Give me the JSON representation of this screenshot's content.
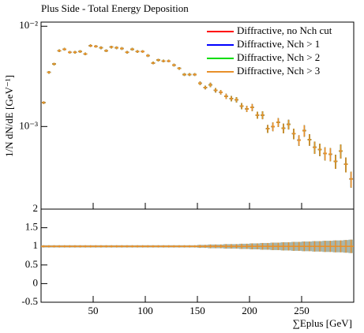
{
  "chart_data": [
    {
      "type": "errorbar",
      "title": "Plus Side - Total Energy Deposition",
      "y_label": "1/N dN/dE [GeV⁻¹]",
      "log_y": true,
      "legend": "upper right",
      "xlim": [
        0,
        300
      ],
      "xticks": [
        50,
        100,
        150,
        200,
        250
      ],
      "ylim": [
        0.00015,
        0.011
      ],
      "yticks": [
        {
          "value": 0.01,
          "label": "10⁻²"
        },
        {
          "value": 0.001,
          "label": "10⁻³"
        }
      ],
      "x": [
        2.5,
        7.5,
        12.5,
        17.5,
        22.5,
        27.5,
        32.5,
        37.5,
        42.5,
        47.5,
        52.5,
        57.5,
        62.5,
        67.5,
        72.5,
        77.5,
        82.5,
        87.5,
        92.5,
        97.5,
        102.5,
        107.5,
        112.5,
        117.5,
        122.5,
        127.5,
        132.5,
        137.5,
        142.5,
        147.5,
        152.5,
        157.5,
        162.5,
        167.5,
        172.5,
        177.5,
        182.5,
        187.5,
        192.5,
        197.5,
        202.5,
        207.5,
        212.5,
        217.5,
        222.5,
        227.5,
        232.5,
        237.5,
        242.5,
        247.5,
        252.5,
        257.5,
        262.5,
        267.5,
        272.5,
        277.5,
        282.5,
        287.5,
        292.5,
        297.5
      ],
      "series": [
        {
          "name": "Diffractive, no Nch cut",
          "color": "#ff0000",
          "values": [
            0.00173,
            0.00347,
            0.0042,
            0.0057,
            0.0059,
            0.0055,
            0.0055,
            0.0056,
            0.0053,
            0.0064,
            0.0063,
            0.0061,
            0.0057,
            0.0062,
            0.0061,
            0.006,
            0.0055,
            0.0059,
            0.0056,
            0.0056,
            0.0051,
            0.0043,
            0.0046,
            0.0045,
            0.0045,
            0.0041,
            0.0038,
            0.0033,
            0.0033,
            0.0033,
            0.0027,
            0.00245,
            0.0026,
            0.0023,
            0.0022,
            0.002,
            0.0019,
            0.00185,
            0.0016,
            0.0015,
            0.00155,
            0.0013,
            0.0013,
            0.00095,
            0.001,
            0.0011,
            0.00096,
            0.00105,
            0.00085,
            0.00073,
            0.00091,
            0.00074,
            0.00062,
            0.00059,
            0.00054,
            0.00053,
            0.00045,
            0.00057,
            0.00042,
            0.0003
          ]
        },
        {
          "name": "Diffractive, Nch > 1",
          "color": "#0000ff",
          "values": [
            0.00173,
            0.00347,
            0.0042,
            0.0057,
            0.0059,
            0.0055,
            0.0055,
            0.0056,
            0.0053,
            0.0064,
            0.0063,
            0.0061,
            0.0057,
            0.0062,
            0.0061,
            0.006,
            0.0055,
            0.0059,
            0.0056,
            0.0056,
            0.0051,
            0.0043,
            0.0046,
            0.0045,
            0.0045,
            0.0041,
            0.0038,
            0.0033,
            0.0033,
            0.0033,
            0.0027,
            0.00245,
            0.0026,
            0.0023,
            0.0022,
            0.002,
            0.0019,
            0.00185,
            0.0016,
            0.0015,
            0.00155,
            0.0013,
            0.0013,
            0.00095,
            0.001,
            0.0011,
            0.00096,
            0.00105,
            0.00085,
            0.00073,
            0.00091,
            0.00074,
            0.00062,
            0.00059,
            0.00054,
            0.00053,
            0.00045,
            0.00057,
            0.00042,
            0.0003
          ]
        },
        {
          "name": "Diffractive, Nch > 2",
          "color": "#00dd00",
          "values": [
            0.00173,
            0.00347,
            0.0042,
            0.0057,
            0.0059,
            0.0055,
            0.0055,
            0.0056,
            0.0053,
            0.0064,
            0.0063,
            0.0061,
            0.0057,
            0.0062,
            0.0061,
            0.006,
            0.0055,
            0.0059,
            0.0056,
            0.0056,
            0.0051,
            0.0043,
            0.0046,
            0.0045,
            0.0045,
            0.0041,
            0.0038,
            0.0033,
            0.0033,
            0.0033,
            0.0027,
            0.00245,
            0.0026,
            0.0023,
            0.0022,
            0.002,
            0.0019,
            0.00185,
            0.0016,
            0.0015,
            0.00155,
            0.0013,
            0.0013,
            0.00095,
            0.001,
            0.0011,
            0.00096,
            0.00105,
            0.00085,
            0.00073,
            0.00091,
            0.00074,
            0.00062,
            0.00059,
            0.00054,
            0.00053,
            0.00045,
            0.00057,
            0.00042,
            0.0003
          ]
        },
        {
          "name": "Diffractive, Nch > 3",
          "color": "#e8902a",
          "values": [
            0.00173,
            0.00347,
            0.0042,
            0.0057,
            0.0059,
            0.0055,
            0.0055,
            0.0056,
            0.0053,
            0.0064,
            0.0063,
            0.0061,
            0.0057,
            0.0062,
            0.0061,
            0.006,
            0.0055,
            0.0059,
            0.0056,
            0.0056,
            0.0051,
            0.0043,
            0.0046,
            0.0045,
            0.0045,
            0.0041,
            0.0038,
            0.0033,
            0.0033,
            0.0033,
            0.0027,
            0.00245,
            0.0026,
            0.0023,
            0.0022,
            0.002,
            0.0019,
            0.00185,
            0.0016,
            0.0015,
            0.00155,
            0.0013,
            0.0013,
            0.00095,
            0.001,
            0.0011,
            0.00096,
            0.00105,
            0.00085,
            0.00073,
            0.00091,
            0.00074,
            0.00062,
            0.00059,
            0.00054,
            0.00053,
            0.00045,
            0.00057,
            0.00042,
            0.0003
          ]
        }
      ]
    },
    {
      "type": "ratio",
      "x_label": "∑Eplus [GeV]",
      "color": "#e8902a",
      "band_color": "#8a9a8a",
      "xlim": [
        0,
        300
      ],
      "xticks": [
        50,
        100,
        150,
        200,
        250
      ],
      "ylim": [
        -0.5,
        2
      ],
      "yticks": [
        2,
        1.5,
        1,
        0.5,
        0,
        -0.5
      ],
      "x": [
        2.5,
        7.5,
        12.5,
        17.5,
        22.5,
        27.5,
        32.5,
        37.5,
        42.5,
        47.5,
        52.5,
        57.5,
        62.5,
        67.5,
        72.5,
        77.5,
        82.5,
        87.5,
        92.5,
        97.5,
        102.5,
        107.5,
        112.5,
        117.5,
        122.5,
        127.5,
        132.5,
        137.5,
        142.5,
        147.5,
        152.5,
        157.5,
        162.5,
        167.5,
        172.5,
        177.5,
        182.5,
        187.5,
        192.5,
        197.5,
        202.5,
        207.5,
        212.5,
        217.5,
        222.5,
        227.5,
        232.5,
        237.5,
        242.5,
        247.5,
        252.5,
        257.5,
        262.5,
        267.5,
        272.5,
        277.5,
        282.5,
        287.5,
        292.5,
        297.5
      ],
      "values": [
        1,
        1,
        1,
        1,
        1,
        1,
        1,
        1,
        1,
        1,
        1,
        1,
        1,
        1,
        1,
        1,
        1,
        1,
        1,
        1,
        1,
        1,
        1,
        1,
        1,
        1,
        1,
        1,
        1,
        1,
        1,
        1,
        1,
        1,
        1,
        1,
        1,
        1,
        1,
        1,
        1,
        1,
        1,
        1,
        1,
        1,
        1,
        1,
        1,
        1,
        1,
        1,
        1,
        1,
        1,
        1,
        1,
        1,
        1,
        1
      ],
      "errors": [
        0.03,
        0.03,
        0.03,
        0.03,
        0.03,
        0.03,
        0.03,
        0.03,
        0.03,
        0.03,
        0.03,
        0.03,
        0.03,
        0.03,
        0.03,
        0.03,
        0.03,
        0.03,
        0.03,
        0.03,
        0.03,
        0.03,
        0.03,
        0.03,
        0.03,
        0.03,
        0.03,
        0.03,
        0.03,
        0.03,
        0.04,
        0.04,
        0.05,
        0.05,
        0.05,
        0.06,
        0.06,
        0.06,
        0.07,
        0.07,
        0.08,
        0.08,
        0.09,
        0.09,
        0.1,
        0.1,
        0.11,
        0.11,
        0.12,
        0.12,
        0.13,
        0.13,
        0.14,
        0.14,
        0.15,
        0.15,
        0.16,
        0.16,
        0.17,
        0.18
      ]
    }
  ]
}
